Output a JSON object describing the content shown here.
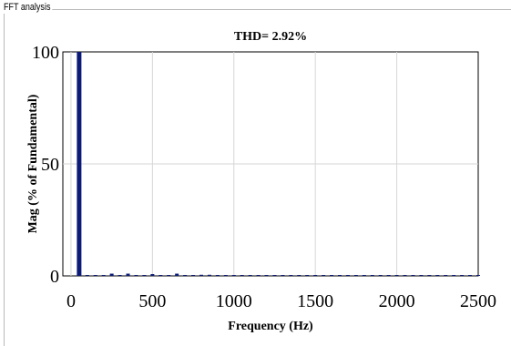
{
  "panel": {
    "title": "FFT analysis"
  },
  "chart_data": {
    "type": "bar",
    "title": "THD= 2.92%",
    "xlabel": "Frequency (Hz)",
    "ylabel": "Mag (% of Fundamental)",
    "xlim": [
      -50,
      2500
    ],
    "ylim": [
      0,
      100
    ],
    "xticks": [
      "0",
      "500",
      "1000",
      "1500",
      "2000",
      "2500"
    ],
    "yticks": [
      "0",
      "50",
      "100"
    ],
    "grid": true,
    "bar_color": "#0b1a78",
    "series": [
      {
        "x": [
          50,
          100,
          150,
          200,
          250,
          300,
          350,
          400,
          450,
          500,
          550,
          600,
          650,
          700,
          750,
          800,
          850,
          900,
          950,
          1000,
          1050,
          1100,
          1150,
          1200,
          1250,
          1300,
          1350,
          1400,
          1450,
          1500,
          1550,
          1600,
          1650,
          1700,
          1750,
          1800,
          1850,
          1900,
          1950,
          2000,
          2050,
          2100,
          2150,
          2200,
          2250,
          2300,
          2350,
          2400,
          2450,
          2500
        ],
        "values": [
          100,
          0.3,
          0.3,
          0.2,
          1.0,
          0.2,
          1.0,
          0.2,
          0.3,
          0.8,
          0.3,
          0.3,
          1.0,
          0.2,
          0.3,
          0.5,
          0.5,
          0.2,
          0.2,
          0.3,
          0.2,
          0.3,
          0.2,
          0.2,
          0.2,
          0.2,
          0.2,
          0.2,
          0.2,
          0.2,
          0.2,
          0.2,
          0.2,
          0.2,
          0.2,
          0.2,
          0.2,
          0.2,
          0.2,
          0.2,
          0.2,
          0.2,
          0.2,
          0.2,
          0.2,
          0.2,
          0.2,
          0.2,
          0.2,
          0.2
        ]
      }
    ]
  }
}
